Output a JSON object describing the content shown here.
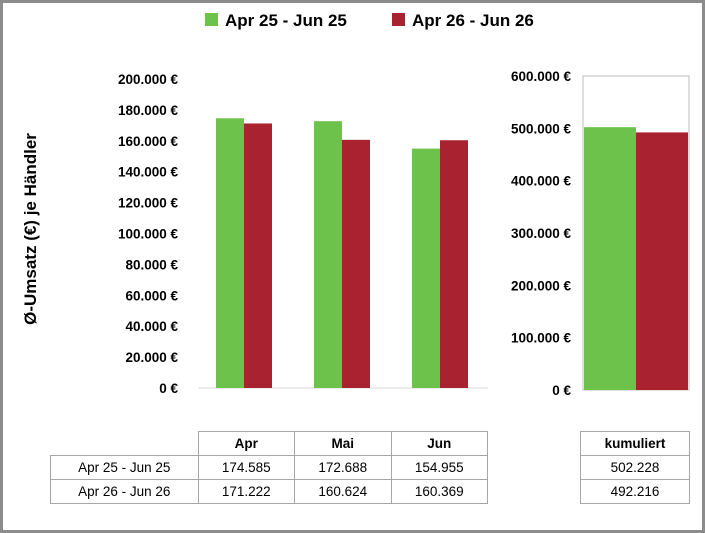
{
  "colors": {
    "series1": "#6cc24a",
    "series2": "#a8232f"
  },
  "legend": [
    "Apr 25 - Jun 25",
    "Apr 26 - Jun 26"
  ],
  "chart_data": [
    {
      "type": "bar",
      "categories": [
        "Apr",
        "Mai",
        "Jun"
      ],
      "series": [
        {
          "name": "Apr 25 - Jun 25",
          "values": [
            174585,
            172688,
            154955
          ]
        },
        {
          "name": "Apr 26 - Jun 26",
          "values": [
            171222,
            160624,
            160369
          ]
        }
      ],
      "ylabel": "Ø-Umsatz (€) je Händler",
      "ylim": [
        0,
        200000
      ],
      "yticks": [
        "200.000 €",
        "180.000 €",
        "160.000 €",
        "140.000 €",
        "120.000 €",
        "100.000 €",
        "80.000 €",
        "60.000 €",
        "40.000 €",
        "20.000 €",
        "0 €"
      ],
      "grid": false,
      "legend": "top"
    },
    {
      "type": "bar",
      "categories": [
        "kumuliert"
      ],
      "series": [
        {
          "name": "Apr 25 - Jun 25",
          "values": [
            502228
          ]
        },
        {
          "name": "Apr 26 - Jun 26",
          "values": [
            492216
          ]
        }
      ],
      "ylim": [
        0,
        600000
      ],
      "yticks": [
        "600.000 €",
        "500.000 €",
        "400.000 €",
        "300.000 €",
        "200.000 €",
        "100.000 €",
        "0 €"
      ],
      "grid": false
    }
  ],
  "table_main": {
    "headers": [
      "Apr",
      "Mai",
      "Jun"
    ],
    "rows": [
      {
        "label": "Apr 25 - Jun 25",
        "values": [
          "174.585",
          "172.688",
          "154.955"
        ]
      },
      {
        "label": "Apr 26 - Jun 26",
        "values": [
          "171.222",
          "160.624",
          "160.369"
        ]
      }
    ]
  },
  "table_cum": {
    "header": "kumuliert",
    "values": [
      "502.228",
      "492.216"
    ]
  }
}
